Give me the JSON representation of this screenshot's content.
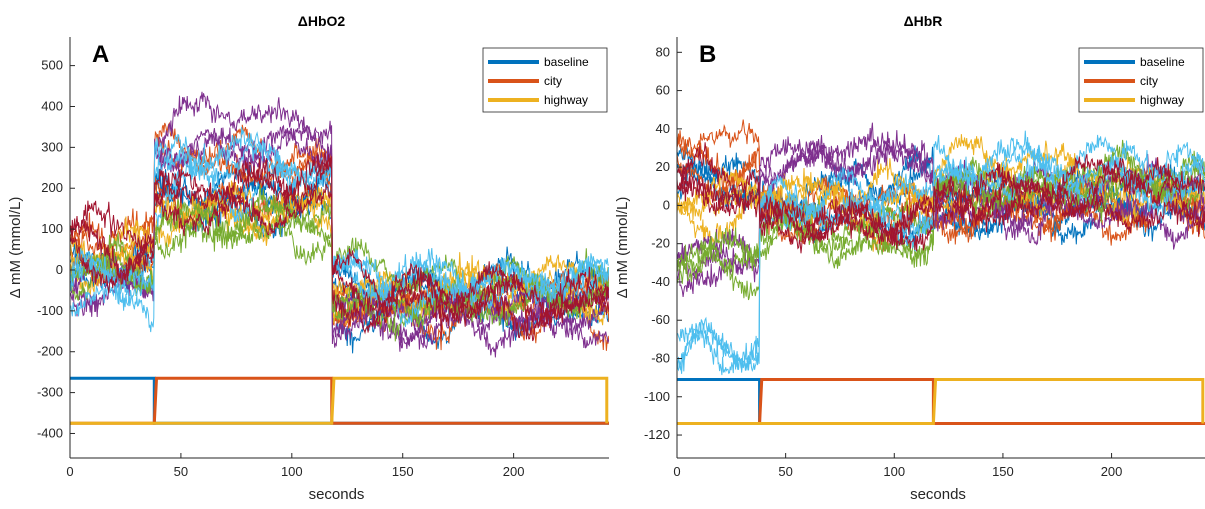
{
  "chart_data": [
    {
      "type": "line",
      "panel_label": "A",
      "title": "ΔHbO2",
      "xlabel": "seconds",
      "ylabel": "Δ mM (mmol/L)",
      "xlim": [
        0,
        243
      ],
      "ylim": [
        -460,
        570
      ],
      "xticks": [
        0,
        50,
        100,
        150,
        200
      ],
      "yticks": [
        -400,
        -300,
        -200,
        -100,
        0,
        100,
        200,
        300,
        400,
        500
      ],
      "legend": {
        "position": "top-right",
        "entries": [
          "baseline",
          "city",
          "highway"
        ]
      },
      "condition_markers": {
        "high": -265,
        "low": -375,
        "baseline_end": 38,
        "city_end": 118,
        "end": 243
      },
      "channel_segment_means": {
        "note_segments": [
          "0-38 s",
          "38-118 s",
          "118-243 s"
        ],
        "channels": [
          {
            "color": "#0072BD",
            "means": [
              10,
              170,
              -70
            ]
          },
          {
            "color": "#D95319",
            "means": [
              30,
              220,
              -100
            ]
          },
          {
            "color": "#EDB120",
            "means": [
              40,
              150,
              -60
            ]
          },
          {
            "color": "#7E2F8E",
            "means": [
              -20,
              330,
              -120
            ]
          },
          {
            "color": "#77AC30",
            "means": [
              0,
              110,
              -50
            ]
          },
          {
            "color": "#4DBEEE",
            "means": [
              -60,
              200,
              -40
            ]
          },
          {
            "color": "#A2142F",
            "means": [
              50,
              180,
              -80
            ]
          }
        ]
      }
    },
    {
      "type": "line",
      "panel_label": "B",
      "title": "ΔHbR",
      "xlabel": "seconds",
      "ylabel": "Δ mM (mmol/L)",
      "xlim": [
        0,
        243
      ],
      "ylim": [
        -132,
        88
      ],
      "xticks": [
        0,
        50,
        100,
        150,
        200
      ],
      "yticks": [
        -120,
        -100,
        -80,
        -60,
        -40,
        -20,
        0,
        20,
        40,
        60,
        80
      ],
      "legend": {
        "position": "top-right",
        "entries": [
          "baseline",
          "city",
          "highway"
        ]
      },
      "condition_markers": {
        "high": -91,
        "low": -114,
        "baseline_end": 38,
        "city_end": 118,
        "end": 243
      },
      "channel_segment_means": {
        "note_segments": [
          "0-38 s",
          "38-118 s",
          "118-243 s"
        ],
        "channels": [
          {
            "color": "#0072BD",
            "means": [
              15,
              5,
              0
            ]
          },
          {
            "color": "#D95319",
            "means": [
              25,
              0,
              0
            ]
          },
          {
            "color": "#EDB120",
            "means": [
              0,
              0,
              10
            ]
          },
          {
            "color": "#7E2F8E",
            "means": [
              -30,
              20,
              0
            ]
          },
          {
            "color": "#77AC30",
            "means": [
              -25,
              -10,
              15
            ]
          },
          {
            "color": "#4DBEEE",
            "means": [
              -75,
              0,
              20
            ]
          },
          {
            "color": "#A2142F",
            "means": [
              10,
              -5,
              5
            ]
          }
        ]
      }
    }
  ],
  "legend_colors": {
    "baseline": "#0072BD",
    "city": "#D95319",
    "highway": "#EDB120"
  }
}
